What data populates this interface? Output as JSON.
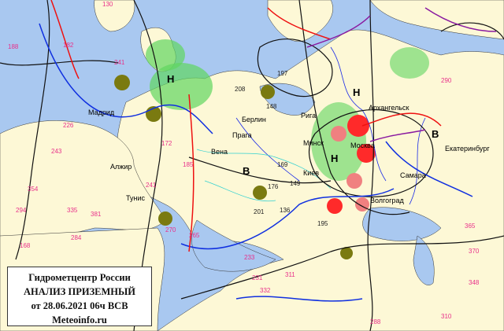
{
  "title_box": {
    "line1": "Гидрометцентр России",
    "line2": "АНАЛИЗ ПРИЗЕМНЫЙ",
    "line3": "от 28.06.2021 06ч ВСВ",
    "line4": "Meteoinfo.ru"
  },
  "cities": [
    "Берлин",
    "Прага",
    "Вена",
    "Рига",
    "Минск",
    "Москва",
    "Киев",
    "Самара",
    "Архангельск",
    "Екатеринбург",
    "Волгоград",
    "Алжир",
    "Тунис",
    "Мадрид"
  ],
  "pressure_centers": [
    "Н",
    "В",
    "Н",
    "В",
    "Н"
  ],
  "station_values": [
    "176",
    "149",
    "136",
    "169",
    "201",
    "195",
    "148",
    "208",
    "197",
    "172",
    "185",
    "241",
    "270",
    "265",
    "233",
    "226",
    "243",
    "231",
    "294",
    "354",
    "335",
    "381",
    "284",
    "168",
    "130",
    "188",
    "182",
    "241",
    "290",
    "370",
    "365",
    "348",
    "310",
    "288",
    "311",
    "332"
  ],
  "colors": {
    "land": "#fdf8d6",
    "sea": "#a9c8f0",
    "cold_front": "#1030e0",
    "warm_front": "#ee1111",
    "occluded_front": "#8a1aa0",
    "isobar": "#111111",
    "rain": "#5fd65f",
    "thunder": "#ff2a2a",
    "fog": "#7a7a10"
  }
}
